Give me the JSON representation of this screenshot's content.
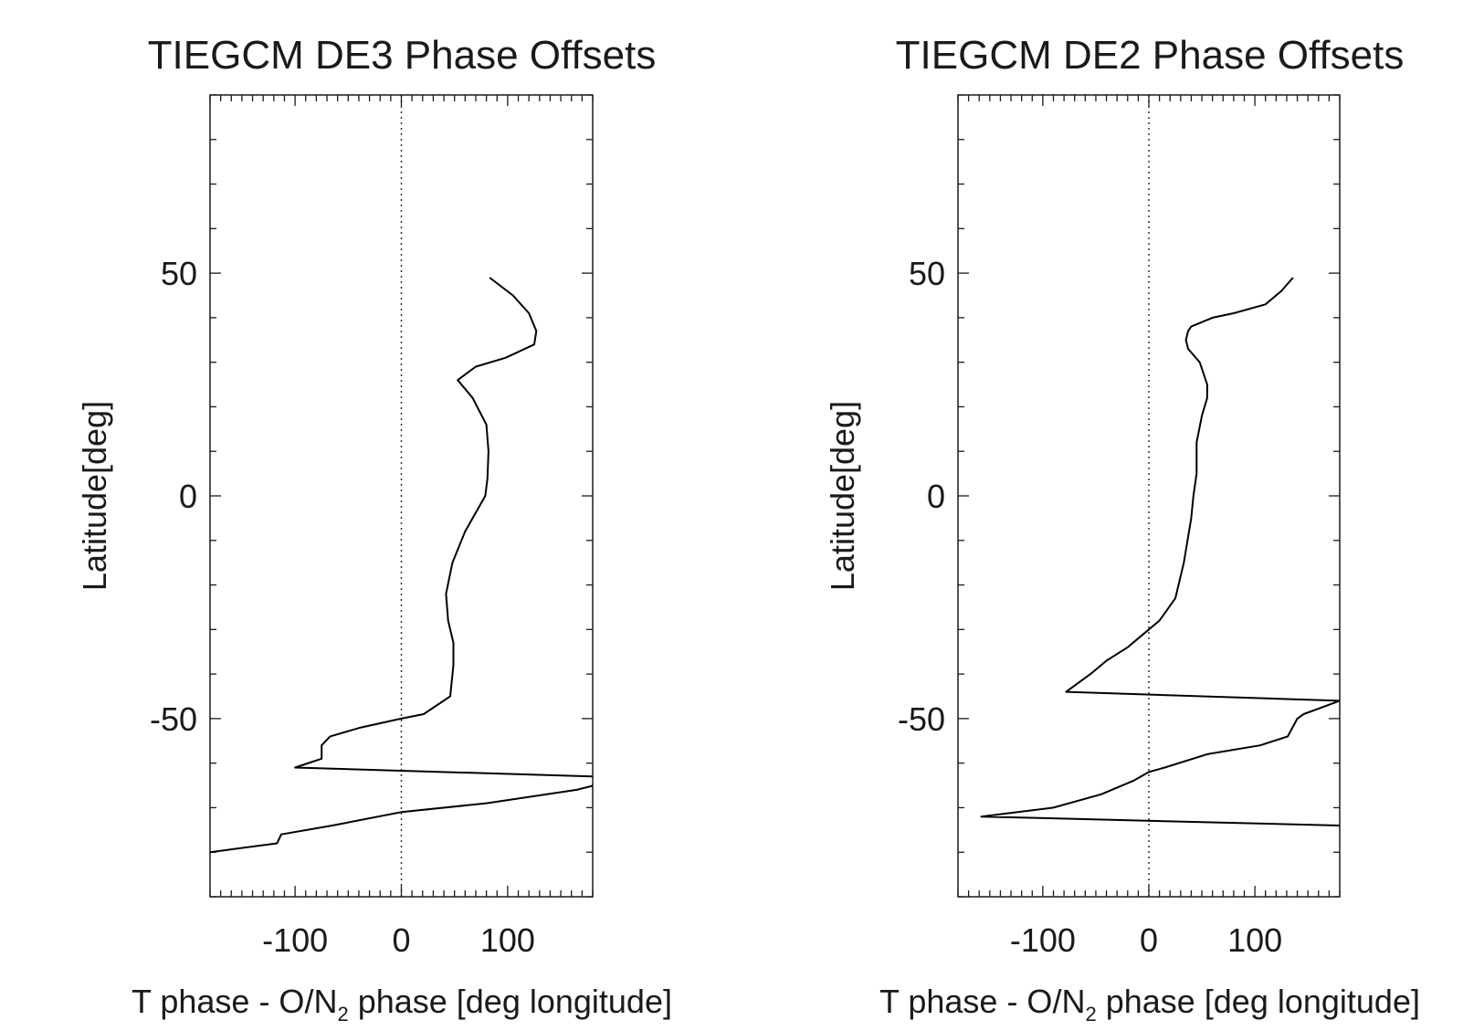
{
  "chart_data": [
    {
      "type": "line",
      "title": "TIEGCM DE3 Phase Offsets",
      "xlabel": "T phase - O/N",
      "xlabel_sub": "2",
      "xlabel_rest": " phase [deg longitude]",
      "ylabel": "Latitude[deg]",
      "xlim": [
        -180,
        180
      ],
      "ylim": [
        -90,
        90
      ],
      "xticks": [
        -100,
        0,
        100
      ],
      "xtick_labels": [
        "-100",
        "0",
        "100"
      ],
      "yticks": [
        -50,
        0,
        50
      ],
      "ytick_labels": [
        "-50",
        "0",
        "50"
      ],
      "reference_line_x": 0,
      "grid": false,
      "series": [
        {
          "color": "#000000",
          "x": [
            83,
            105,
            120,
            127,
            125,
            98,
            70,
            53,
            67,
            80,
            82,
            81,
            79,
            60,
            48,
            42,
            44,
            49,
            49,
            46,
            21,
            0,
            -38,
            -67,
            -75,
            -75,
            -100,
            181,
            181,
            165,
            80,
            0,
            -65,
            -113,
            -117,
            -180
          ],
          "y": [
            49,
            45,
            41,
            37,
            34,
            31,
            29,
            26,
            22,
            16,
            10,
            4,
            0,
            -8,
            -15,
            -22,
            -28,
            -33,
            -38,
            -45,
            -49,
            -50,
            -52,
            -54,
            -56,
            -59,
            -61,
            -63,
            -65,
            -66,
            -69,
            -71,
            -74,
            -76,
            -78,
            -80
          ]
        }
      ]
    },
    {
      "type": "line",
      "title": "TIEGCM DE2 Phase Offsets",
      "xlabel": "T phase - O/N",
      "xlabel_sub": "2",
      "xlabel_rest": " phase [deg longitude]",
      "ylabel": "Latitude[deg]",
      "xlim": [
        -180,
        180
      ],
      "ylim": [
        -90,
        90
      ],
      "xticks": [
        -100,
        0,
        100
      ],
      "xtick_labels": [
        "-100",
        "0",
        "100"
      ],
      "yticks": [
        -50,
        0,
        50
      ],
      "ytick_labels": [
        "-50",
        "0",
        "50"
      ],
      "reference_line_x": 0,
      "grid": false,
      "series": [
        {
          "color": "#000000",
          "x": [
            136,
            125,
            110,
            80,
            60,
            40,
            37,
            35,
            37,
            48,
            55,
            55,
            50,
            45,
            45,
            42,
            40,
            33,
            25,
            10,
            0,
            -20,
            -40,
            -55,
            -78,
            180,
            146,
            140,
            131,
            105,
            55,
            15,
            0,
            -15,
            -45,
            -90,
            -158,
            180
          ],
          "y": [
            49,
            46,
            43,
            41,
            40,
            38,
            37,
            35,
            33,
            30,
            25,
            22,
            18,
            12,
            5,
            0,
            -5,
            -15,
            -23,
            -28,
            -30,
            -34,
            -37,
            -40,
            -44,
            -46,
            -49,
            -50,
            -54,
            -56,
            -58,
            -61,
            -62,
            -64,
            -67,
            -70,
            -72,
            -74
          ]
        }
      ]
    }
  ]
}
